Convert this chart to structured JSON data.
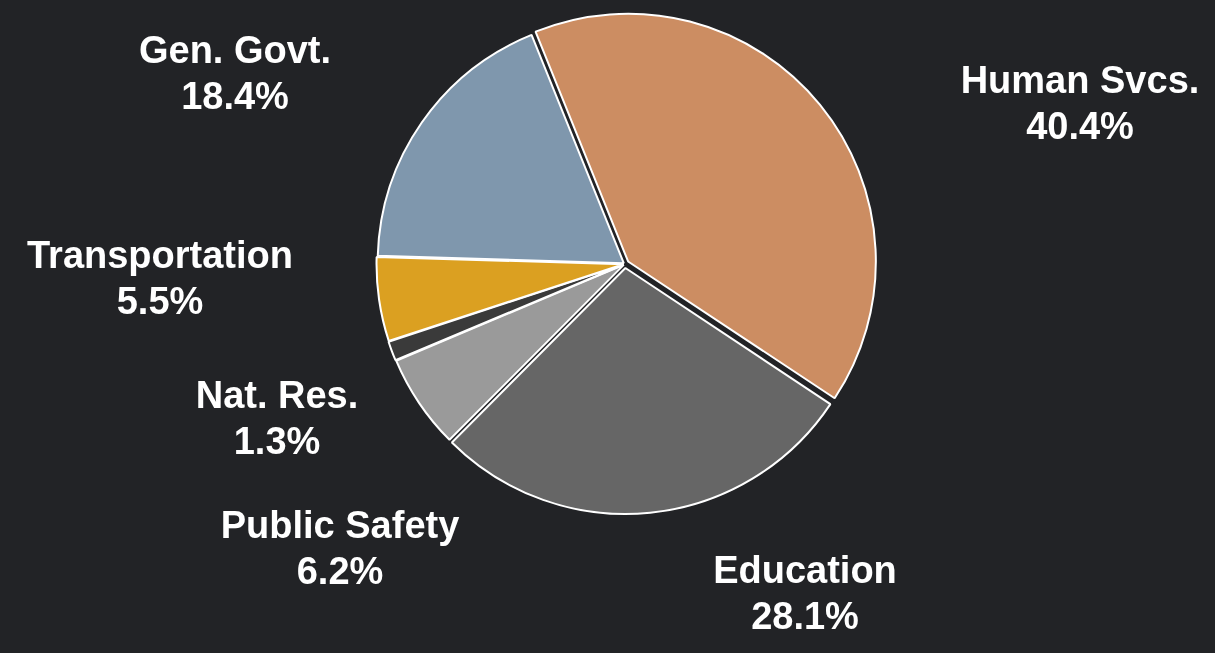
{
  "chart_data": {
    "type": "pie",
    "categories": [
      "Human Svcs.",
      "Education",
      "Public Safety",
      "Nat. Res.",
      "Transportation",
      "Gen. Govt."
    ],
    "values": [
      40.4,
      28.1,
      6.2,
      1.3,
      5.5,
      18.4
    ],
    "colors": [
      "#cc8d62",
      "#666666",
      "#9a9a9a",
      "#3a3a3a",
      "#dba021",
      "#7f97ad"
    ],
    "value_labels": [
      "40.4%",
      "28.1%",
      "6.2%",
      "1.3%",
      "5.5%",
      "18.4%"
    ],
    "legend": false
  }
}
